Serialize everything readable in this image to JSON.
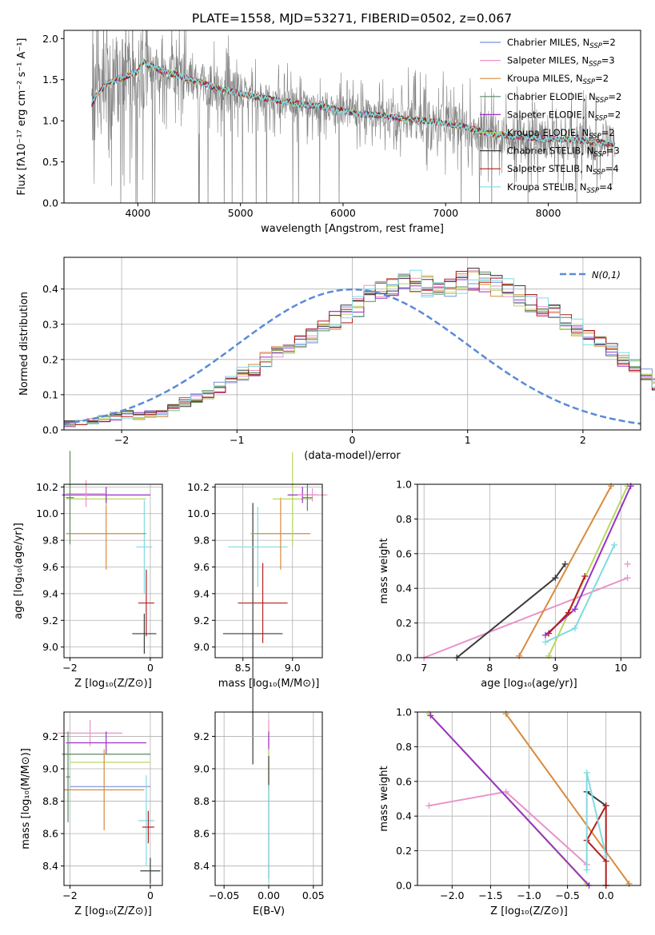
{
  "figure": {
    "title": "PLATE=1558, MJD=53271, FIBERID=0502, z=0.067"
  },
  "colors": {
    "model_colors": [
      "#7b8fd4",
      "#e993c9",
      "#d98a3f",
      "#5a8a60",
      "#9b30c8",
      "#b8d860",
      "#3b3b3b",
      "#b41f1f",
      "#80dbe0"
    ],
    "data_color": "#808080",
    "gaussian_color": "#5b8ad6"
  },
  "chart_data": [
    {
      "id": "spectrum",
      "type": "line",
      "title": "PLATE=1558, MJD=53271, FIBERID=0502, z=0.067",
      "xlabel": "wavelength [Angstrom, rest frame]",
      "ylabel": "Flux [fλ10⁻¹⁷ erg cm⁻² s⁻¹ A⁻¹]",
      "xlim": [
        3280,
        8900
      ],
      "ylim": [
        0,
        2.1
      ],
      "xticks": [
        4000,
        5000,
        6000,
        7000,
        8000
      ],
      "yticks": [
        0.0,
        0.5,
        1.0,
        1.5,
        2.0
      ],
      "grid": false,
      "legend_position": "top-right",
      "continuum": {
        "x": [
          3550,
          3620,
          3700,
          3800,
          3900,
          4000,
          4050,
          4100,
          4200,
          4300,
          4400,
          4500,
          4600,
          4700,
          4800,
          4900,
          5000,
          5200,
          5400,
          5600,
          5800,
          6000,
          6200,
          6400,
          6600,
          6800,
          7000,
          7200,
          7400,
          7600,
          7800,
          8000,
          8200,
          8400,
          8600,
          8650
        ],
        "y": [
          1.2,
          1.35,
          1.45,
          1.5,
          1.55,
          1.6,
          1.72,
          1.68,
          1.62,
          1.58,
          1.55,
          1.5,
          1.47,
          1.43,
          1.38,
          1.36,
          1.33,
          1.28,
          1.24,
          1.2,
          1.17,
          1.12,
          1.08,
          1.06,
          1.02,
          1.0,
          0.97,
          0.92,
          0.85,
          0.82,
          0.8,
          0.78,
          0.77,
          0.75,
          0.72,
          0.7
        ]
      },
      "series": [
        {
          "name": "Chabrier MILES, N_SSP=2"
        },
        {
          "name": "Salpeter MILES, N_SSP=3"
        },
        {
          "name": "Kroupa MILES, N_SSP=2"
        },
        {
          "name": "Chabrier ELODIE, N_SSP=2"
        },
        {
          "name": "Salpeter ELODIE, N_SSP=2"
        },
        {
          "name": "Kroupa ELODIE, N_SSP=2"
        },
        {
          "name": "Chabrier STELIB, N_SSP=3"
        },
        {
          "name": "Salpeter STELIB, N_SSP=4"
        },
        {
          "name": "Kroupa STELIB, N_SSP=4"
        }
      ]
    },
    {
      "id": "residuals",
      "type": "histogram",
      "xlabel": "(data-model)/error",
      "ylabel": "Normed distribution",
      "xlim": [
        -2.5,
        2.5
      ],
      "ylim": [
        0,
        0.49
      ],
      "xticks": [
        -2,
        -1,
        0,
        1,
        2
      ],
      "yticks": [
        0.0,
        0.1,
        0.2,
        0.3,
        0.4
      ],
      "grid": true,
      "legend_position": "top-right",
      "gaussian_label": "N(0,1)",
      "bin_width": 0.1,
      "envelope": [
        0.015,
        0.02,
        0.025,
        0.03,
        0.04,
        0.045,
        0.04,
        0.045,
        0.05,
        0.065,
        0.08,
        0.09,
        0.1,
        0.12,
        0.15,
        0.16,
        0.17,
        0.2,
        0.22,
        0.24,
        0.25,
        0.27,
        0.29,
        0.31,
        0.33,
        0.35,
        0.38,
        0.4,
        0.41,
        0.43,
        0.42,
        0.41,
        0.4,
        0.41,
        0.42,
        0.43,
        0.42,
        0.41,
        0.4,
        0.38,
        0.36,
        0.35,
        0.33,
        0.31,
        0.29,
        0.26,
        0.25,
        0.23,
        0.2,
        0.18,
        0.16,
        0.13,
        0.12,
        0.11,
        0.08,
        0.07,
        0.065,
        0.06,
        0.055,
        0.05,
        0.05,
        0.045,
        0.045,
        0.04,
        0.035,
        0.03,
        0.025,
        0.02,
        0.02,
        0.015
      ]
    },
    {
      "id": "age-vs-Z",
      "type": "errorbar",
      "xlabel": "Z [log₁₀(Z/Z⊙)]",
      "ylabel": "age  [log₁₀(age/yr)]",
      "xlim": [
        -2.15,
        0.3
      ],
      "ylim": [
        8.92,
        10.22
      ],
      "xticks": [
        -2,
        0
      ],
      "yticks": [
        9.0,
        9.2,
        9.4,
        9.6,
        9.8,
        10.0,
        10.2
      ],
      "points": [
        {
          "s": 6,
          "x": -0.15,
          "y": 9.1,
          "xerr": 0.3,
          "yerr": 0.15
        },
        {
          "s": 7,
          "x": -0.1,
          "y": 9.33,
          "xerr": 0.2,
          "yerr": 0.25
        },
        {
          "s": 8,
          "x": -0.15,
          "y": 9.75,
          "xerr": 0.2,
          "yerr": 0.35
        },
        {
          "s": 2,
          "x": -1.1,
          "y": 9.85,
          "xerr": 1.0,
          "yerr": 0.27
        },
        {
          "s": 5,
          "x": -1.1,
          "y": 10.11,
          "xerr": 1.0,
          "yerr": 0.05
        },
        {
          "s": 4,
          "x": -1.1,
          "y": 10.14,
          "xerr": 1.1,
          "yerr": 0.06
        },
        {
          "s": 1,
          "x": -1.6,
          "y": 10.15,
          "xerr": 0.5,
          "yerr": 0.1
        },
        {
          "s": 3,
          "x": -2.0,
          "y": 10.12,
          "xerr": 0.1,
          "yerr": 0.35
        }
      ]
    },
    {
      "id": "age-vs-mass",
      "type": "errorbar",
      "xlabel": "mass [log₁₀(M/M⊙)]",
      "ylabel": "",
      "xlim": [
        8.22,
        9.3
      ],
      "ylim": [
        8.92,
        10.22
      ],
      "xticks": [
        8.5,
        9.0
      ],
      "yticks": [
        9.0,
        9.2,
        9.4,
        9.6,
        9.8,
        10.0,
        10.2
      ],
      "points": [
        {
          "s": 6,
          "x": 8.6,
          "y": 9.1,
          "xerr": 0.3,
          "yerr": 0.98
        },
        {
          "s": 7,
          "x": 8.7,
          "y": 9.33,
          "xerr": 0.25,
          "yerr": 0.3
        },
        {
          "s": 8,
          "x": 8.65,
          "y": 9.75,
          "xerr": 0.3,
          "yerr": 0.3
        },
        {
          "s": 2,
          "x": 8.88,
          "y": 9.85,
          "xerr": 0.3,
          "yerr": 0.27
        },
        {
          "s": 5,
          "x": 9.0,
          "y": 10.11,
          "xerr": 0.2,
          "yerr": 0.35
        },
        {
          "s": 4,
          "x": 9.1,
          "y": 10.14,
          "xerr": 0.15,
          "yerr": 0.06
        },
        {
          "s": 1,
          "x": 9.2,
          "y": 10.14,
          "xerr": 0.15,
          "yerr": 0.05
        },
        {
          "s": 3,
          "x": 9.15,
          "y": 10.12,
          "xerr": 0.05,
          "yerr": 0.1
        }
      ]
    },
    {
      "id": "weight-vs-age",
      "type": "line",
      "xlabel": "age  [log₁₀(age/yr)]",
      "ylabel": "mass weight",
      "xlim": [
        6.9,
        10.3
      ],
      "ylim": [
        0.0,
        1.0
      ],
      "xticks": [
        7,
        8,
        9,
        10
      ],
      "yticks": [
        0.0,
        0.2,
        0.4,
        0.6,
        0.8,
        1.0
      ],
      "grid": true,
      "lines": [
        {
          "s": 1,
          "x": [
            7.0,
            10.1
          ],
          "y": [
            0.0,
            0.46
          ]
        },
        {
          "s": 1,
          "x": [
            10.1
          ],
          "y": [
            0.54
          ]
        },
        {
          "s": 6,
          "x": [
            7.5,
            9.0,
            9.15
          ],
          "y": [
            0.0,
            0.46,
            0.54
          ]
        },
        {
          "s": 2,
          "x": [
            8.45,
            9.85
          ],
          "y": [
            0.01,
            0.99
          ]
        },
        {
          "s": 5,
          "x": [
            8.9,
            10.1
          ],
          "y": [
            0.01,
            0.99
          ]
        },
        {
          "s": 4,
          "x": [
            8.85,
            9.3,
            10.15
          ],
          "y": [
            0.13,
            0.28,
            0.99
          ]
        },
        {
          "s": 7,
          "x": [
            8.9,
            9.2,
            9.45
          ],
          "y": [
            0.14,
            0.26,
            0.47
          ]
        },
        {
          "s": 8,
          "x": [
            8.85,
            9.3,
            9.9
          ],
          "y": [
            0.09,
            0.17,
            0.65
          ]
        }
      ]
    },
    {
      "id": "mass-vs-Z",
      "type": "errorbar",
      "xlabel": "Z [log₁₀(Z/Z⊙)]",
      "ylabel": "mass [log₁₀(M/M⊙)]",
      "xlim": [
        -2.15,
        0.3
      ],
      "ylim": [
        8.28,
        9.35
      ],
      "xticks": [
        -2,
        0
      ],
      "yticks": [
        8.4,
        8.6,
        8.8,
        9.0,
        9.2
      ],
      "points": [
        {
          "s": 1,
          "x": -1.5,
          "y": 9.22,
          "xerr": 0.8,
          "yerr": 0.08
        },
        {
          "s": 4,
          "x": -1.1,
          "y": 9.16,
          "xerr": 1.0,
          "yerr": 0.07
        },
        {
          "s": 3,
          "x": -1.1,
          "y": 9.09,
          "xerr": 1.1,
          "yerr": 0.0
        },
        {
          "s": 5,
          "x": -1.0,
          "y": 9.04,
          "xerr": 1.0,
          "yerr": 0.0
        },
        {
          "s": 0,
          "x": -1.0,
          "y": 8.89,
          "xerr": 1.0,
          "yerr": 0.0
        },
        {
          "s": 2,
          "x": -1.15,
          "y": 8.87,
          "xerr": 1.0,
          "yerr": 0.25
        },
        {
          "s": 8,
          "x": -0.1,
          "y": 8.68,
          "xerr": 0.2,
          "yerr": 0.28
        },
        {
          "s": 7,
          "x": -0.05,
          "y": 8.64,
          "xerr": 0.15,
          "yerr": 0.1
        },
        {
          "s": 6,
          "x": 0.0,
          "y": 8.37,
          "xerr": 0.25,
          "yerr": 0.08
        },
        {
          "s": 3,
          "x": -2.05,
          "y": 8.95,
          "xerr": 0.05,
          "yerr": 0.28
        }
      ]
    },
    {
      "id": "mass-vs-EBV",
      "type": "errorbar",
      "xlabel": "E(B-V)",
      "ylabel": "",
      "xlim": [
        -0.06,
        0.06
      ],
      "ylim": [
        8.28,
        9.35
      ],
      "xticks": [
        -0.05,
        0.0,
        0.05
      ],
      "yticks": [
        8.4,
        8.6,
        8.8,
        9.0,
        9.2
      ],
      "points": [
        {
          "s": 1,
          "x": 0.0,
          "y": 9.22,
          "xerr": 0.0,
          "yerr": 0.08
        },
        {
          "s": 4,
          "x": 0.0,
          "y": 9.16,
          "xerr": 0.0,
          "yerr": 0.07
        },
        {
          "s": 5,
          "x": 0.0,
          "y": 9.0,
          "xerr": 0.0,
          "yerr": 0.12
        },
        {
          "s": 6,
          "x": 0.0,
          "y": 8.7,
          "xerr": 0.0,
          "yerr": 0.38
        },
        {
          "s": 8,
          "x": 0.0,
          "y": 8.6,
          "xerr": 0.0,
          "yerr": 0.3
        }
      ]
    },
    {
      "id": "weight-vs-Z",
      "type": "line",
      "xlabel": "Z [log₁₀(Z/Z⊙)]",
      "ylabel": "mass weight",
      "xlim": [
        -2.45,
        0.45
      ],
      "ylim": [
        0.0,
        1.0
      ],
      "xticks": [
        -2.0,
        -1.5,
        -1.0,
        -0.5,
        0.0
      ],
      "yticks": [
        0.0,
        0.2,
        0.4,
        0.6,
        0.8,
        1.0
      ],
      "grid": true,
      "lines": [
        {
          "s": 1,
          "x": [
            -2.3,
            -1.3,
            -0.25
          ],
          "y": [
            0.46,
            0.54,
            0.12
          ]
        },
        {
          "s": 5,
          "x": [
            -2.3,
            -0.25
          ],
          "y": [
            0.99,
            0.01
          ]
        },
        {
          "s": 4,
          "x": [
            -2.28,
            -0.22
          ],
          "y": [
            0.98,
            0.0
          ]
        },
        {
          "s": 2,
          "x": [
            -1.3,
            0.3
          ],
          "y": [
            0.99,
            0.01
          ]
        },
        {
          "s": 6,
          "x": [
            -0.25,
            0.0
          ],
          "y": [
            0.54,
            0.46
          ]
        },
        {
          "s": 7,
          "x": [
            0.0,
            0.0,
            -0.25,
            0.0,
            0.0
          ],
          "y": [
            0.0,
            0.46,
            0.26,
            0.14,
            0.0
          ]
        },
        {
          "s": 8,
          "x": [
            -0.25,
            -0.25,
            0.0
          ],
          "y": [
            0.09,
            0.65,
            0.17
          ]
        }
      ]
    }
  ]
}
